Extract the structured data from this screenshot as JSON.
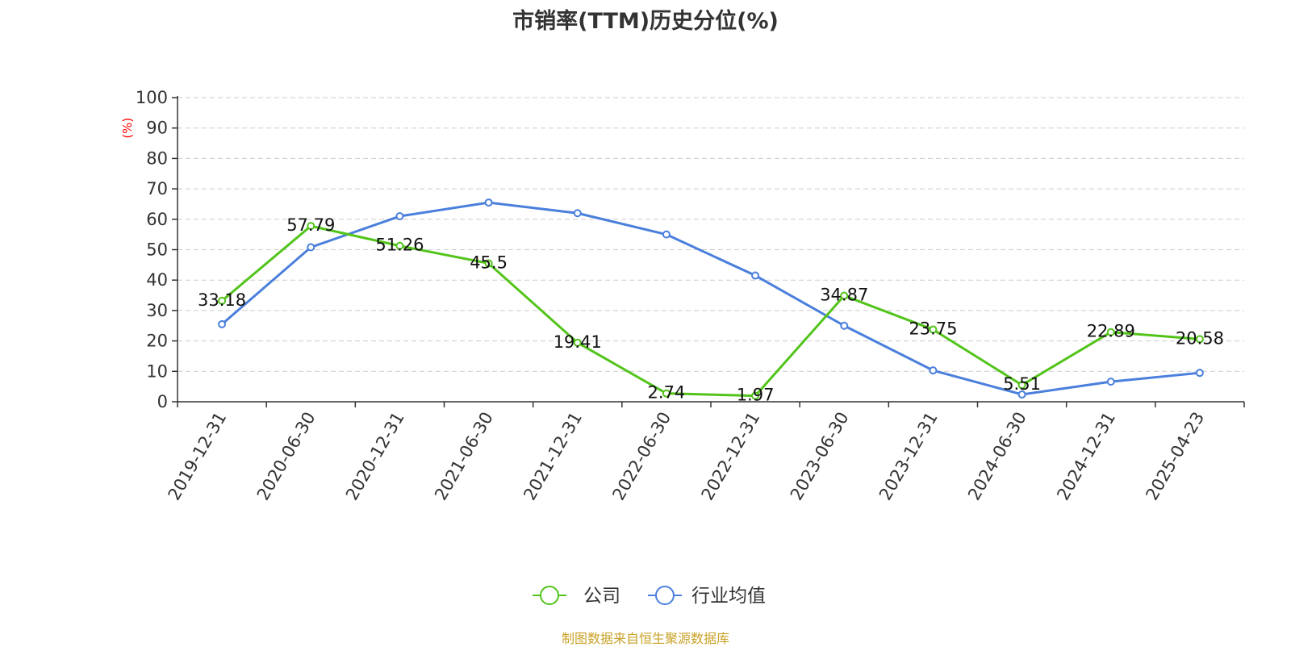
{
  "chart_data": {
    "type": "line",
    "title": "市销率(TTM)历史分位(%)",
    "ylabel": "(%)",
    "xlabel": "",
    "categories": [
      "2019-12-31",
      "2020-06-30",
      "2020-12-31",
      "2021-06-30",
      "2021-12-31",
      "2022-06-30",
      "2022-12-31",
      "2023-06-30",
      "2023-12-31",
      "2024-06-30",
      "2024-12-31",
      "2025-04-23"
    ],
    "ylim": [
      0,
      100
    ],
    "yticks": [
      0,
      10,
      20,
      30,
      40,
      50,
      60,
      70,
      80,
      90,
      100
    ],
    "grid": true,
    "legend_position": "bottom-center",
    "series": [
      {
        "name": "公司",
        "color": "#52c41a",
        "show_labels": true,
        "values": [
          33.18,
          57.79,
          51.26,
          45.5,
          19.41,
          2.74,
          1.97,
          34.87,
          23.75,
          5.51,
          22.89,
          20.58
        ]
      },
      {
        "name": "行业均值",
        "color": "#4a7fdc",
        "show_labels": false,
        "values": [
          25.5,
          50.8,
          61.0,
          65.5,
          62.0,
          55.0,
          41.5,
          25.0,
          10.3,
          2.4,
          6.6,
          9.5
        ]
      }
    ]
  },
  "source_note": {
    "text": "制图数据来自恒生聚源数据库",
    "color": "#c9a227"
  },
  "colors": {
    "ylabel": "#ff0000",
    "axis": "#333333",
    "grid": "#cccccc"
  }
}
